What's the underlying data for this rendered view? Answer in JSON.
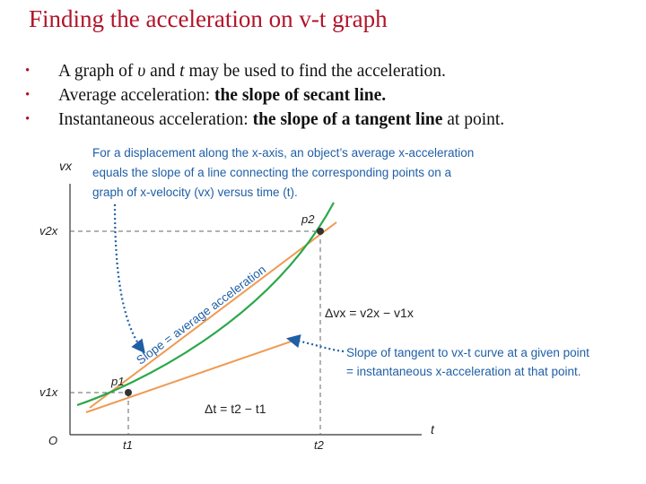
{
  "title": "Finding the acceleration on v-t graph",
  "bullets": [
    {
      "pre": "A graph of ",
      "v": "υ",
      "mid": " and ",
      "t": "t",
      "post": " may be used to find the acceleration."
    },
    {
      "pre": "Average acceleration: ",
      "bold": "the slope of secant line."
    },
    {
      "pre": "Instantaneous acceleration: ",
      "bold": "the slope of a tangent line",
      "post": " at point."
    }
  ],
  "figure": {
    "caption_lines": [
      "For a displacement along the x-axis, an object’s average x-acceleration",
      "equals the slope of a line connecting the corresponding points on a",
      "graph of x-velocity (vx) versus time (t)."
    ],
    "axis": {
      "origin": "O",
      "y_label": "vx",
      "x_label": "t"
    },
    "ticks": {
      "v2x": "v2x",
      "v1x": "v1x",
      "t1": "t1",
      "t2": "t2"
    },
    "points": {
      "p1": "p1",
      "p2": "p2"
    },
    "secant_label": "Slope = average acceleration",
    "delta_v_label": "Δvx = v2x − v1x",
    "delta_t_label": "Δt = t2 − t1",
    "tangent_caption_lines": [
      "Slope of tangent to vx-t curve at a given point",
      "= instantaneous x-acceleration at that point."
    ],
    "colors": {
      "curve": "#2aa84a",
      "lines": "#ef9a52",
      "caption": "#1f5fa6",
      "title": "#b1142a"
    }
  }
}
